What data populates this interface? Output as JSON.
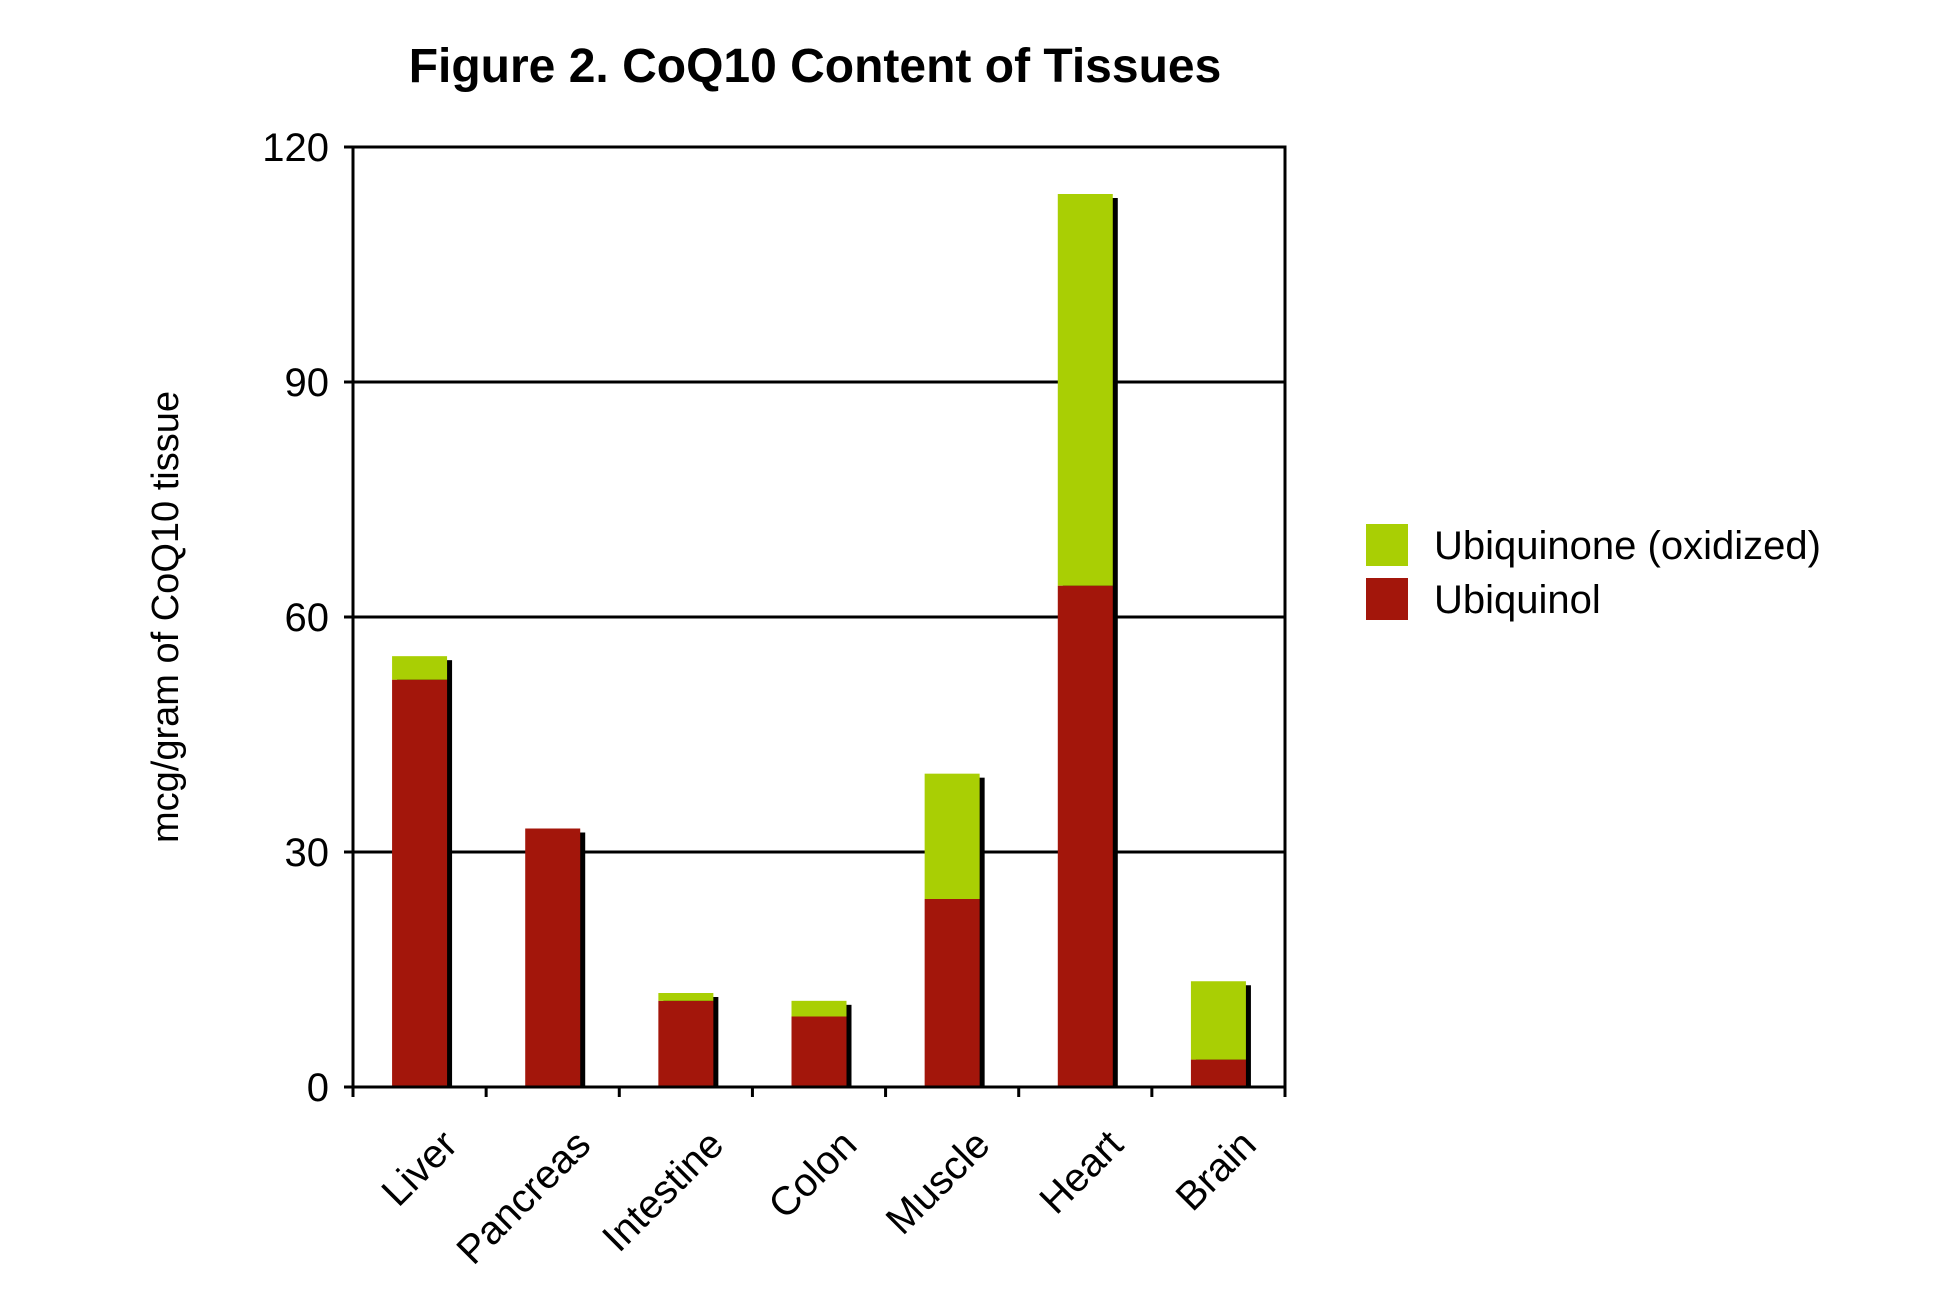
{
  "chart_data": {
    "type": "bar",
    "stacked": true,
    "title": "Figure 2. CoQ10 Content of Tissues",
    "xlabel": "",
    "ylabel": "mcg/gram of CoQ10 tissue",
    "ylim": [
      0,
      120
    ],
    "yticks": [
      0,
      30,
      60,
      90,
      120
    ],
    "grid": true,
    "legend_position": "right",
    "categories": [
      "Liver",
      "Pancreas",
      "Intestine",
      "Colon",
      "Muscle",
      "Heart",
      "Brain"
    ],
    "series": [
      {
        "name": "Ubiquinol",
        "color": "#a3160b",
        "values": [
          52,
          33,
          11,
          9,
          24,
          64,
          3.5
        ]
      },
      {
        "name": "Ubiquinone (oxidized)",
        "color": "#a9cf04",
        "values": [
          3,
          0,
          1,
          2,
          16,
          50,
          10
        ]
      }
    ],
    "legend_order": [
      "Ubiquinone (oxidized)",
      "Ubiquinol"
    ]
  }
}
